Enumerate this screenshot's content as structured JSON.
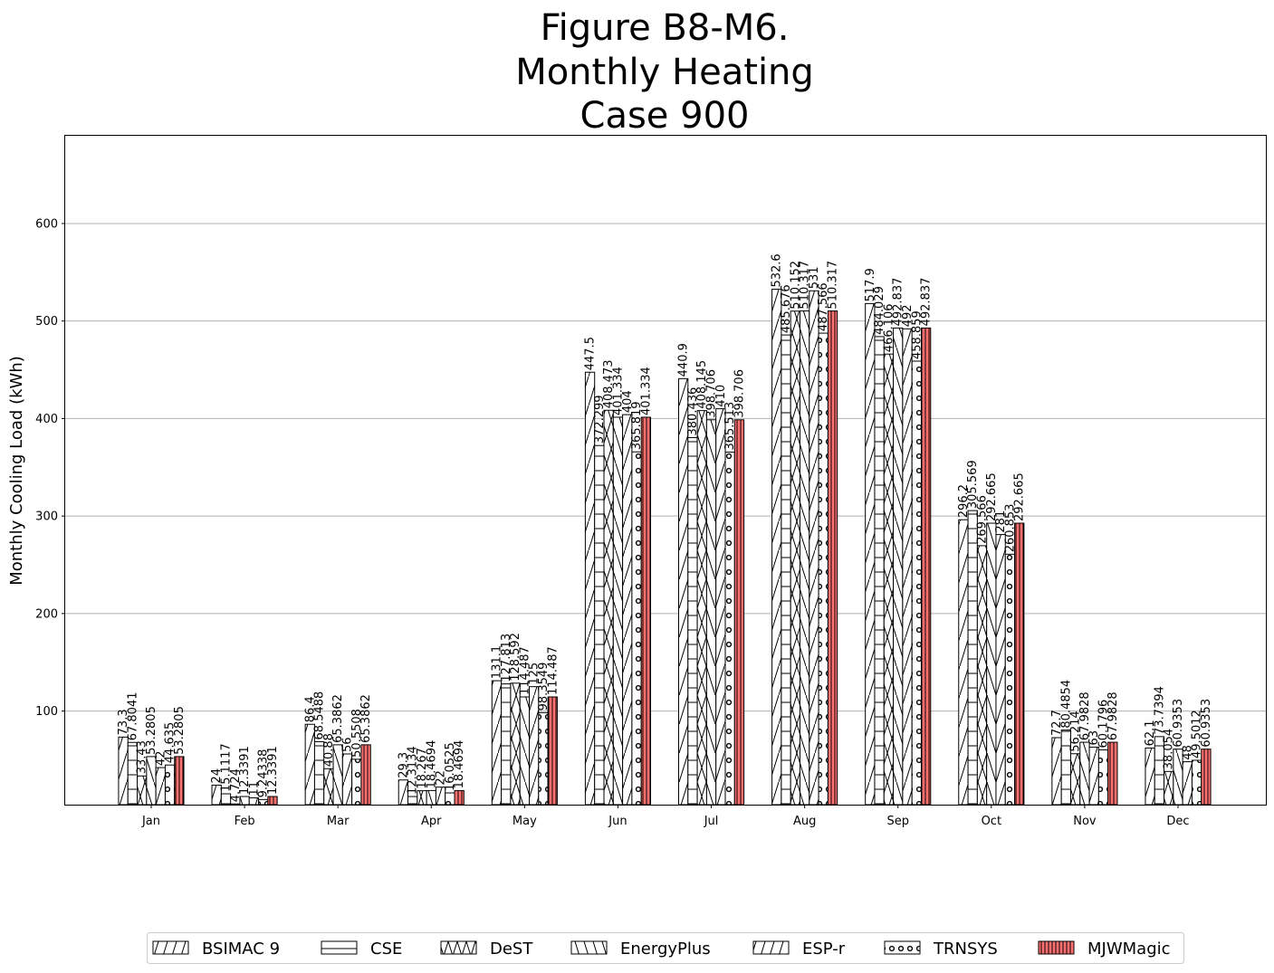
{
  "chart_data": {
    "type": "bar",
    "title": [
      "Figure B8-M6.",
      "Monthly Heating",
      "Case 900"
    ],
    "xlabel": "",
    "ylabel": "Monthly Cooling Load (kWh)",
    "ylim": [
      4,
      690
    ],
    "yticks": [
      100,
      200,
      300,
      400,
      500,
      600
    ],
    "grid": "y",
    "legend_position": "bottom-center",
    "categories": [
      "Jan",
      "Feb",
      "Mar",
      "Apr",
      "May",
      "Jun",
      "Jul",
      "Aug",
      "Sep",
      "Oct",
      "Nov",
      "Dec"
    ],
    "series": [
      {
        "name": "BSIMAC 9",
        "hatch": "slash",
        "color": "#ffffff",
        "values": [
          73.3,
          24,
          86.4,
          29.3,
          131.1,
          447.5,
          440.9,
          532.6,
          517.9,
          296.2,
          72.7,
          62.1
        ],
        "labels": [
          "73.3",
          "24",
          "86.4",
          "29.3",
          "131.1",
          "447.5",
          "440.9",
          "532.6",
          "517.9",
          "296.2",
          "72.7",
          "62.1"
        ]
      },
      {
        "name": "CSE",
        "hatch": "hline",
        "color": "#ffffff",
        "values": [
          67.8041,
          15.1117,
          68.5488,
          12.3134,
          127.813,
          372.299,
          380.436,
          485.676,
          484.029,
          305.569,
          80.4854,
          73.7394
        ],
        "labels": [
          "67.8041",
          "15.1117",
          "68.5488",
          "12.3134",
          "127.813",
          "372.299",
          "380.436",
          "485.676",
          "484.029",
          "305.569",
          "80.4854",
          "73.7394"
        ]
      },
      {
        "name": "DeST",
        "hatch": "cross",
        "color": "#ffffff",
        "values": [
          33.43,
          4.724,
          40.88,
          18.267,
          128.592,
          408.473,
          408.145,
          510.152,
          466.106,
          269.566,
          56.214,
          38.054
        ],
        "labels": [
          "33.43",
          "4.724",
          "40.88",
          "18.267",
          "128.592",
          "408.473",
          "408.145",
          "510.152",
          "466.106",
          "269.566",
          "56.214",
          "38.054"
        ]
      },
      {
        "name": "EnergyPlus",
        "hatch": "backslash",
        "color": "#ffffff",
        "values": [
          53.2805,
          12.3391,
          65.3862,
          18.4694,
          114.487,
          401.334,
          398.706,
          510.317,
          492.837,
          292.665,
          67.9828,
          60.9353
        ],
        "labels": [
          "53.2805",
          "12.3391",
          "65.3862",
          "18.4694",
          "114.487",
          "401.334",
          "398.706",
          "510.317",
          "492.837",
          "292.665",
          "67.9828",
          "60.9353"
        ]
      },
      {
        "name": "ESP-r",
        "hatch": "slash",
        "color": "#ffffff",
        "values": [
          42,
          11,
          56,
          22,
          125,
          404,
          410,
          531,
          492,
          281,
          63,
          48
        ],
        "labels": [
          "42",
          "11",
          "56",
          "22",
          "125",
          "404",
          "410",
          "531",
          "492",
          "281",
          "63",
          "48"
        ]
      },
      {
        "name": "TRNSYS",
        "hatch": "circle",
        "color": "#ffffff",
        "values": [
          44.635,
          9.24338,
          50.5508,
          16.0525,
          98.3549,
          365.819,
          365.513,
          487.566,
          458.859,
          260.853,
          60.1796,
          49.5012
        ],
        "labels": [
          "44.635",
          "9.24338",
          "50.5508",
          "16.0525",
          "98.3549",
          "365.819",
          "365.513",
          "487.566",
          "458.859",
          "260.853",
          "60.1796",
          "49.5012"
        ]
      },
      {
        "name": "MJWMagic",
        "hatch": "vline",
        "color": "#ff7070",
        "values": [
          53.2805,
          12.3391,
          65.3862,
          18.4694,
          114.487,
          401.334,
          398.706,
          510.317,
          492.837,
          292.665,
          67.9828,
          60.9353
        ],
        "labels": [
          "53.2805",
          "12.3391",
          "65.3862",
          "18.4694",
          "114.487",
          "401.334",
          "398.706",
          "510.317",
          "492.837",
          "292.665",
          "67.9828",
          "60.9353"
        ]
      }
    ]
  }
}
